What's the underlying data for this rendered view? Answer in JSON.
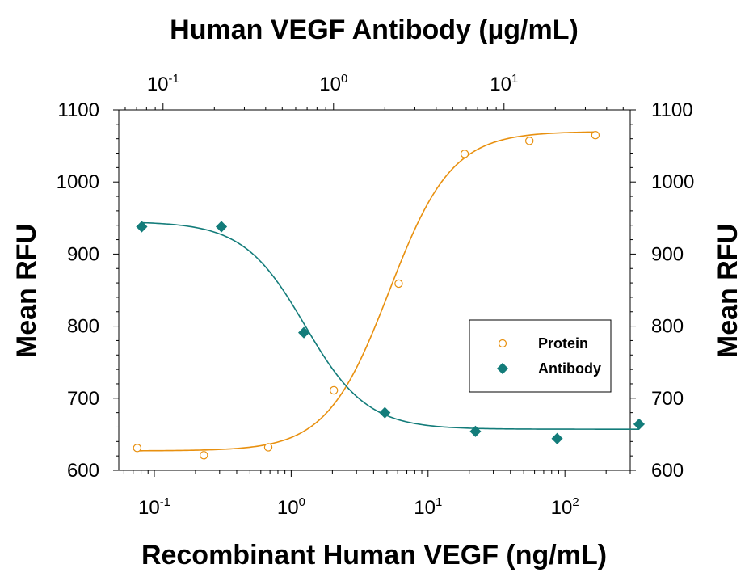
{
  "chart_data": {
    "type": "scatter",
    "title_top": "Human VEGF Antibody (µg/mL)",
    "xlabel": "Recombinant Human VEGF (ng/mL)",
    "ylabel_left": "Mean RFU",
    "ylabel_right": "Mean RFU",
    "x_scale": "log",
    "x_range": [
      0.055,
      300
    ],
    "x2_scale": "log",
    "x2_range": [
      0.055,
      55
    ],
    "ylim": [
      600,
      1100
    ],
    "y_ticks": [
      600,
      700,
      800,
      900,
      1000,
      1100
    ],
    "x_tick_labels": [
      {
        "value": 0.1,
        "base": "10",
        "exp": "-1"
      },
      {
        "value": 1,
        "base": "10",
        "exp": "0"
      },
      {
        "value": 10,
        "base": "10",
        "exp": "1"
      },
      {
        "value": 100,
        "base": "10",
        "exp": "2"
      }
    ],
    "x2_tick_labels": [
      {
        "value": 0.1,
        "base": "10",
        "exp": "-1"
      },
      {
        "value": 1,
        "base": "10",
        "exp": "0"
      },
      {
        "value": 10,
        "base": "10",
        "exp": "1"
      }
    ],
    "legend_position": "right",
    "series": [
      {
        "name": "Protein",
        "axis": "bottom",
        "marker": "open-circle",
        "color": "#E8900F",
        "points": [
          [
            0.075,
            631
          ],
          [
            0.23,
            621
          ],
          [
            0.68,
            632
          ],
          [
            2.05,
            711
          ],
          [
            6.1,
            859
          ],
          [
            18.5,
            1039
          ],
          [
            55,
            1057
          ],
          [
            167,
            1065
          ]
        ],
        "fit": {
          "bottom": 627,
          "top": 1070,
          "ec50": 5.2,
          "hill": 1.9
        }
      },
      {
        "name": "Antibody",
        "axis": "top",
        "marker": "filled-diamond",
        "color": "#137C7A",
        "points": [
          [
            0.075,
            938
          ],
          [
            0.22,
            938
          ],
          [
            0.67,
            791
          ],
          [
            2.0,
            680
          ],
          [
            6.8,
            654
          ],
          [
            20.5,
            644
          ],
          [
            62,
            664
          ]
        ],
        "fit": {
          "bottom": 657,
          "top": 945,
          "ec50": 0.68,
          "hill": 2.4
        }
      }
    ]
  }
}
